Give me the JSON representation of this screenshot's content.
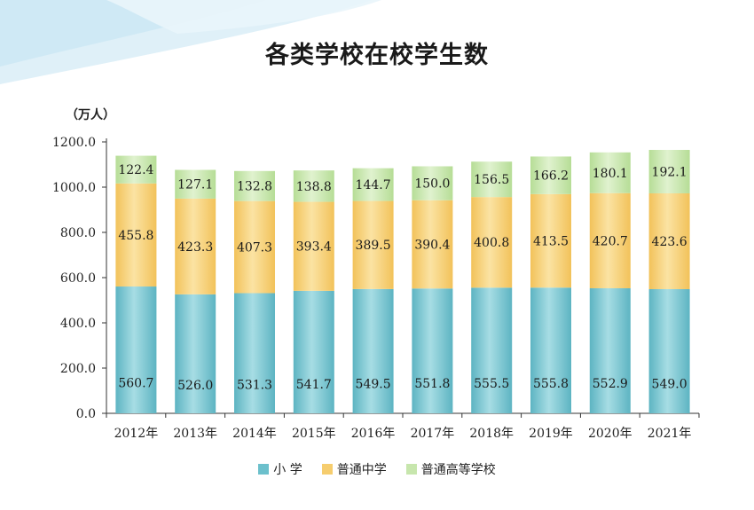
{
  "title": "各类学校在校学生数",
  "unit_label": "（万人）",
  "colors": {
    "primary": "#6cc0cc",
    "middle": "#f6cd6e",
    "higher": "#c7e6ad"
  },
  "chart_data": {
    "type": "bar",
    "stacked": true,
    "title": "各类学校在校学生数",
    "ylabel": "（万人）",
    "xlabel": "",
    "ylim": [
      0,
      1200
    ],
    "yticks": [
      "0.0",
      "200.0",
      "400.0",
      "600.0",
      "800.0",
      "1000.0",
      "1200.0"
    ],
    "categories": [
      "2012年",
      "2013年",
      "2014年",
      "2015年",
      "2016年",
      "2017年",
      "2018年",
      "2019年",
      "2020年",
      "2021年"
    ],
    "series": [
      {
        "name": "小 学",
        "values": [
          560.7,
          526.0,
          531.3,
          541.7,
          549.5,
          551.8,
          555.5,
          555.8,
          552.9,
          549.0
        ],
        "labels": [
          "560.7",
          "526.0",
          "531.3",
          "541.7",
          "549.5",
          "551.8",
          "555.5",
          "555.8",
          "552.9",
          "549.0"
        ]
      },
      {
        "name": "普通中学",
        "values": [
          455.8,
          423.3,
          407.3,
          393.4,
          389.5,
          390.4,
          400.8,
          413.5,
          420.7,
          423.6
        ],
        "labels": [
          "455.8",
          "423.3",
          "407.3",
          "393.4",
          "389.5",
          "390.4",
          "400.8",
          "413.5",
          "420.7",
          "423.6"
        ]
      },
      {
        "name": "普通高等学校",
        "values": [
          122.4,
          127.1,
          132.8,
          138.8,
          144.7,
          150.0,
          156.5,
          166.2,
          180.1,
          192.1
        ],
        "labels": [
          "122.4",
          "127.1",
          "132.8",
          "138.8",
          "144.7",
          "150.0",
          "156.5",
          "166.2",
          "180.1",
          "192.1"
        ]
      }
    ],
    "grid": false,
    "legend_position": "bottom-center"
  }
}
